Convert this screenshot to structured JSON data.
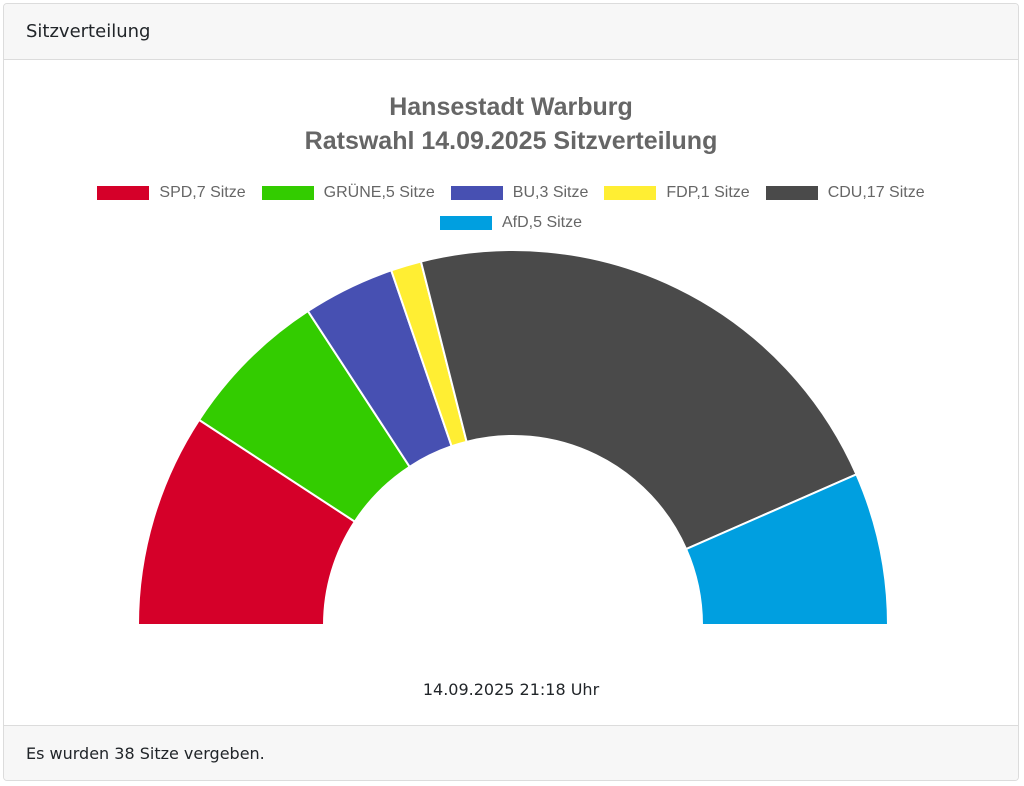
{
  "card": {
    "header": "Sitzverteilung",
    "footer": "Es wurden 38 Sitze vergeben.",
    "timestamp": "14.09.2025 21:18 Uhr"
  },
  "chart_data": {
    "type": "pie",
    "variant": "semicircle-doughnut",
    "title": [
      "Hansestadt Warburg",
      "Ratswahl 14.09.2025 Sitzverteilung"
    ],
    "legend_position": "top",
    "categories": [
      "SPD",
      "GRÜNE",
      "BU",
      "FDP",
      "CDU",
      "AfD"
    ],
    "values": [
      7,
      5,
      3,
      1,
      17,
      5
    ],
    "colors": [
      "#d50029",
      "#33cc00",
      "#4750b2",
      "#ffee33",
      "#4a4a4a",
      "#009fe0"
    ],
    "legend_labels": [
      "SPD,7 Sitze",
      "GRÜNE,5 Sitze",
      "BU,3 Sitze",
      "FDP,1 Sitze",
      "CDU,17 Sitze",
      "AfD,5 Sitze"
    ],
    "total": 38
  }
}
